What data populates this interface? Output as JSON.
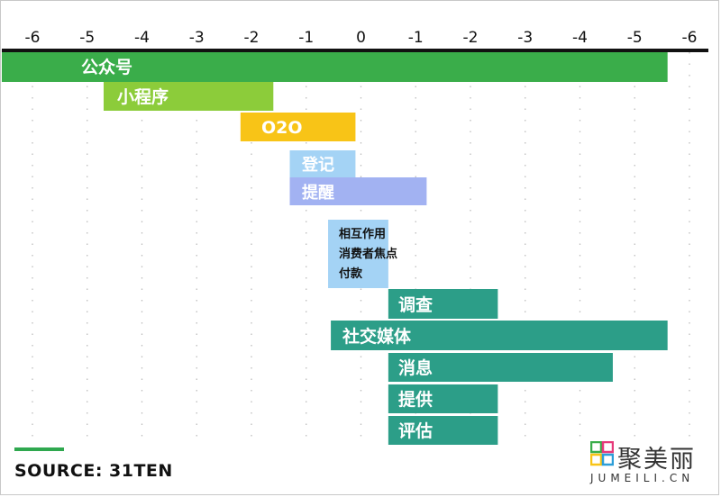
{
  "chart_data": {
    "type": "bar",
    "x_tick_labels": [
      "-6",
      "-5",
      "-4",
      "-3",
      "-2",
      "-1",
      "0",
      "-1",
      "-2",
      "-3",
      "-4",
      "-5",
      "-6"
    ],
    "xlim": [
      -6,
      6
    ],
    "grid": true,
    "bars": [
      {
        "label": "公众号",
        "start": -6.6,
        "end": 5.6,
        "color": "#3aad4a"
      },
      {
        "label": "小程序",
        "start": -4.7,
        "end": -1.6,
        "color": "#8ccc3a"
      },
      {
        "label": "O2O",
        "start": -2.2,
        "end": -0.1,
        "color": "#f8c417"
      },
      {
        "label": "登记",
        "start": -1.3,
        "end": -0.1,
        "color": "#a4d3f5"
      },
      {
        "label": "提醒",
        "start": -1.3,
        "end": 1.2,
        "color": "#a2b2f2"
      },
      {
        "label": "相互作用\n消费者焦点\n付款",
        "start": -0.6,
        "end": 0.5,
        "color": "#a4d3f5"
      },
      {
        "label": "调查",
        "start": 0.5,
        "end": 2.5,
        "color": "#2c9e88"
      },
      {
        "label": "社交媒体",
        "start": -0.55,
        "end": 5.6,
        "color": "#2c9e88"
      },
      {
        "label": "消息",
        "start": 0.5,
        "end": 4.6,
        "color": "#2c9e88"
      },
      {
        "label": "提供",
        "start": 0.5,
        "end": 2.5,
        "color": "#2c9e88"
      },
      {
        "label": "评估",
        "start": 0.5,
        "end": 2.5,
        "color": "#2c9e88"
      }
    ]
  },
  "source": "SOURCE: 31TEN",
  "logo": {
    "name": "聚美丽",
    "sub": "JUMEILI.CN"
  }
}
